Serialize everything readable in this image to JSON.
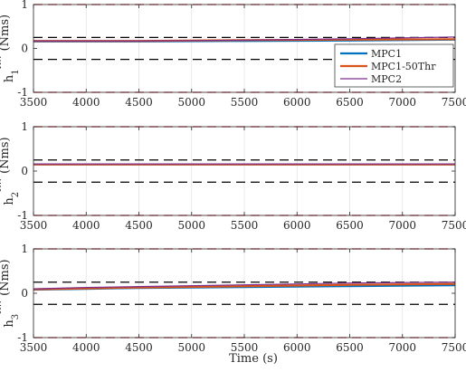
{
  "chart_data": [
    {
      "type": "line",
      "ylabel_base": "h",
      "ylabel_sub": "1",
      "ylabel_sup": "RW",
      "ylabel_unit": "(Nms)",
      "xlim": [
        3500,
        7500
      ],
      "ylim": [
        -1,
        1
      ],
      "x_ticks": [
        "3500",
        "4000",
        "4500",
        "5000",
        "5500",
        "6000",
        "6500",
        "7000",
        "7500"
      ],
      "y_ticks": [
        "-1",
        "0",
        "1"
      ],
      "grid": "vertical",
      "reference_lines": [
        {
          "y": 1,
          "color": "#d62728",
          "style": "dashed"
        },
        {
          "y": -1,
          "color": "#d62728",
          "style": "dashed"
        },
        {
          "y": 0.25,
          "color": "#000000",
          "style": "dashed"
        },
        {
          "y": -0.25,
          "color": "#000000",
          "style": "dashed"
        }
      ],
      "legend": {
        "placement": "right",
        "entries": [
          "MPC1",
          "MPC1-50Thr",
          "MPC2"
        ]
      },
      "series": [
        {
          "name": "MPC1",
          "color": "#0072BD",
          "x": [
            3500,
            4500,
            5500,
            6500,
            7500
          ],
          "y": [
            0.16,
            0.16,
            0.17,
            0.18,
            0.2
          ]
        },
        {
          "name": "MPC1-50Thr",
          "color": "#D95319",
          "x": [
            3500,
            4500,
            5500,
            6500,
            7500
          ],
          "y": [
            0.17,
            0.17,
            0.19,
            0.2,
            0.21
          ]
        },
        {
          "name": "MPC2",
          "color": "#7E2F8E",
          "x": [
            3500,
            4500,
            5500,
            6500,
            7500
          ],
          "y": [
            0.17,
            0.17,
            0.19,
            0.22,
            0.26
          ]
        }
      ]
    },
    {
      "type": "line",
      "ylabel_base": "h",
      "ylabel_sub": "2",
      "ylabel_sup": "RW",
      "ylabel_unit": "(Nms)",
      "xlim": [
        3500,
        7500
      ],
      "ylim": [
        -1,
        1
      ],
      "x_ticks": [
        "3500",
        "4000",
        "4500",
        "5000",
        "5500",
        "6000",
        "6500",
        "7000",
        "7500"
      ],
      "y_ticks": [
        "-1",
        "0",
        "1"
      ],
      "grid": "vertical",
      "reference_lines": [
        {
          "y": 1,
          "color": "#d62728",
          "style": "dashed"
        },
        {
          "y": -1,
          "color": "#d62728",
          "style": "dashed"
        },
        {
          "y": 0.25,
          "color": "#000000",
          "style": "dashed"
        },
        {
          "y": -0.25,
          "color": "#000000",
          "style": "dashed"
        }
      ],
      "series": [
        {
          "name": "MPC1",
          "color": "#0072BD",
          "x": [
            3500,
            4500,
            5500,
            6500,
            7500
          ],
          "y": [
            0.15,
            0.15,
            0.15,
            0.15,
            0.15
          ]
        },
        {
          "name": "MPC1-50Thr",
          "color": "#D95319",
          "x": [
            3500,
            4500,
            5500,
            6500,
            7500
          ],
          "y": [
            0.15,
            0.15,
            0.15,
            0.15,
            0.15
          ]
        },
        {
          "name": "MPC2",
          "color": "#7E2F8E",
          "x": [
            3500,
            4500,
            5500,
            6500,
            7500
          ],
          "y": [
            0.16,
            0.16,
            0.16,
            0.16,
            0.16
          ]
        }
      ]
    },
    {
      "type": "line",
      "ylabel_base": "h",
      "ylabel_sub": "3",
      "ylabel_sup": "RW",
      "ylabel_unit": "(Nms)",
      "xlabel": "Time (s)",
      "xlim": [
        3500,
        7500
      ],
      "ylim": [
        -1,
        1
      ],
      "x_ticks": [
        "3500",
        "4000",
        "4500",
        "5000",
        "5500",
        "6000",
        "6500",
        "7000",
        "7500"
      ],
      "y_ticks": [
        "-1",
        "0",
        "1"
      ],
      "grid": "vertical",
      "reference_lines": [
        {
          "y": 1,
          "color": "#d62728",
          "style": "dashed"
        },
        {
          "y": -1,
          "color": "#d62728",
          "style": "dashed"
        },
        {
          "y": 0.25,
          "color": "#000000",
          "style": "dashed"
        },
        {
          "y": -0.25,
          "color": "#000000",
          "style": "dashed"
        }
      ],
      "series": [
        {
          "name": "MPC1",
          "color": "#0072BD",
          "x": [
            3500,
            4000,
            4500,
            5500,
            6500,
            7500
          ],
          "y": [
            0.08,
            0.1,
            0.12,
            0.14,
            0.16,
            0.18
          ]
        },
        {
          "name": "MPC1-50Thr",
          "color": "#D95319",
          "x": [
            3500,
            4000,
            4500,
            5500,
            6500,
            7500
          ],
          "y": [
            0.09,
            0.11,
            0.13,
            0.16,
            0.19,
            0.21
          ]
        },
        {
          "name": "MPC2",
          "color": "#7E2F8E",
          "x": [
            3500,
            4000,
            4500,
            5500,
            6500,
            7500
          ],
          "y": [
            0.1,
            0.13,
            0.15,
            0.19,
            0.23,
            0.25
          ]
        }
      ]
    }
  ]
}
